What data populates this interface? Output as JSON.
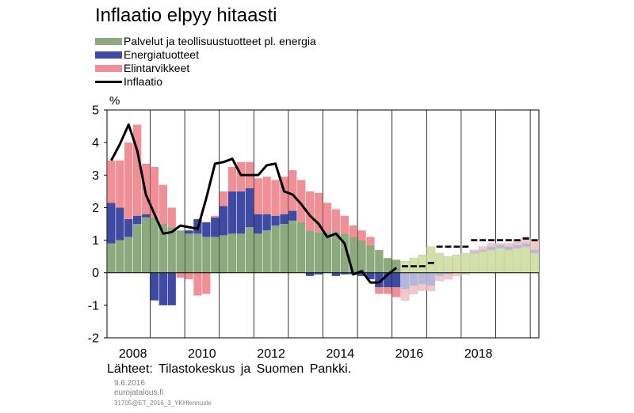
{
  "title": "Inflaatio elpyy hitaasti",
  "unit": "%",
  "source": "Lähteet: Tilastokeskus ja Suomen Pankki.",
  "footer": {
    "date": "9.6.2016",
    "site": "eurojatalous.fi",
    "code": "31705@ET_2016_3_YKHlennuste"
  },
  "colors": {
    "services": "#8daa7e",
    "energy": "#3f4ba3",
    "food": "#f09096",
    "inflation": "#000000",
    "services_forecast": "#d4e1a4",
    "energy_forecast": "#b4b6dc",
    "food_forecast": "#f7c6c8"
  },
  "chart_data": {
    "type": "bar",
    "stacked": true,
    "ylabel": "%",
    "ylim": [
      -2,
      5
    ],
    "yticks": [
      5,
      4,
      3,
      2,
      1,
      0,
      -1,
      -2
    ],
    "xticks": [
      "2008",
      "2010",
      "2012",
      "2014",
      "2016",
      "2018"
    ],
    "start_period": "2007Q4",
    "forecast_start": "2016Q2",
    "legend": [
      "Palvelut ja teollisuustuotteet pl. energia",
      "Energiatuotteet",
      "Elintarvikkeet",
      "Inflaatio"
    ],
    "series": [
      {
        "name": "Palvelut ja teollisuustuotteet pl. energia",
        "values": [
          0.9,
          1.0,
          1.1,
          1.5,
          1.7,
          1.7,
          1.5,
          1.4,
          1.3,
          1.2,
          1.2,
          1.1,
          1.1,
          1.15,
          1.2,
          1.2,
          1.4,
          1.2,
          1.3,
          1.45,
          1.5,
          1.6,
          1.55,
          1.3,
          1.25,
          1.25,
          1.25,
          1.2,
          1.1,
          1.0,
          0.85,
          0.7,
          0.45,
          0.4,
          0.35,
          0.45,
          0.55,
          0.8,
          0.6,
          0.5,
          0.55,
          0.6,
          0.6,
          0.65,
          0.7,
          0.75,
          0.7,
          0.75,
          0.8,
          0.6
        ]
      },
      {
        "name": "Energiatuotteet",
        "values": [
          1.25,
          1.0,
          0.55,
          0.25,
          0.1,
          -0.85,
          -1.0,
          -1.0,
          0.0,
          0.1,
          0.45,
          0.45,
          0.6,
          0.9,
          1.3,
          1.3,
          1.2,
          0.6,
          0.5,
          0.3,
          0.3,
          0.3,
          0.0,
          -0.1,
          -0.05,
          0.0,
          -0.1,
          -0.05,
          -0.05,
          -0.1,
          -0.2,
          -0.45,
          -0.45,
          -0.45,
          -0.5,
          -0.4,
          -0.35,
          -0.4,
          -0.1,
          -0.05,
          0.0,
          0.0,
          0.05,
          0.05,
          0.1,
          0.1,
          0.1,
          0.1,
          0.1,
          0.1
        ]
      },
      {
        "name": "Elintarvikkeet",
        "values": [
          1.3,
          1.45,
          2.35,
          2.8,
          1.55,
          1.55,
          1.2,
          0.6,
          -0.15,
          -0.2,
          -0.7,
          -0.65,
          0.05,
          0.45,
          0.75,
          0.9,
          0.8,
          1.1,
          1.15,
          1.1,
          1.15,
          1.25,
          1.3,
          1.2,
          1.2,
          0.9,
          0.7,
          0.55,
          0.35,
          0.3,
          0.25,
          -0.2,
          -0.2,
          -0.3,
          -0.35,
          -0.25,
          -0.2,
          -0.15,
          -0.15,
          -0.15,
          -0.1,
          -0.05,
          0.05,
          0.1,
          0.1,
          0.05,
          0.1,
          0.15,
          0.2,
          0.3
        ]
      }
    ],
    "inflation": {
      "name": "Inflaatio",
      "values": [
        3.45,
        3.95,
        4.55,
        3.75,
        2.4,
        1.8,
        1.2,
        1.25,
        1.45,
        1.4,
        1.35,
        2.3,
        3.35,
        3.4,
        3.5,
        3.0,
        3.0,
        3.0,
        3.3,
        3.35,
        2.5,
        2.4,
        2.1,
        1.75,
        1.5,
        1.1,
        1.2,
        0.9,
        -0.05,
        0.05,
        -0.3,
        -0.3,
        -0.05,
        0.15,
        0.2,
        0.2,
        0.2,
        0.3,
        0.8,
        0.8,
        0.8,
        0.8,
        1.0,
        1.0,
        1.0,
        1.0,
        1.0,
        1.0,
        1.05,
        1.0
      ]
    }
  }
}
